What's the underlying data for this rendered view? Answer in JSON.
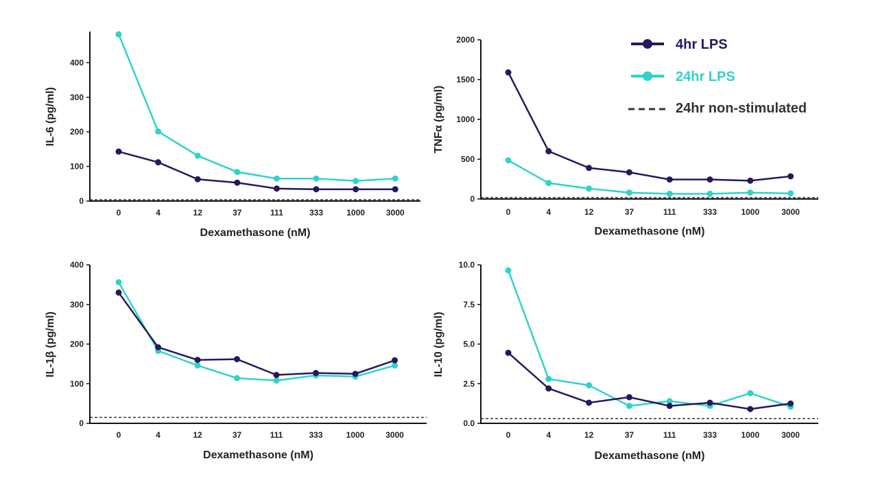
{
  "colors": {
    "lps4": "#23195e",
    "lps24": "#2fd3c9",
    "baseline": "#333333"
  },
  "legend": {
    "items": [
      {
        "label": "4hr LPS",
        "color": "#23195e",
        "style": "line-marker"
      },
      {
        "label": "24hr LPS",
        "color": "#2fd3c9",
        "style": "line-marker"
      },
      {
        "label": "24hr non-stimulated",
        "color": "#333333",
        "style": "dashed"
      }
    ]
  },
  "chart_data": [
    {
      "type": "line",
      "id": "il6",
      "ylabel": "IL-6 (pg/ml)",
      "xlabel": "Dexamethasone (nM)",
      "categories": [
        "0",
        "4",
        "12",
        "37",
        "111",
        "333",
        "1000",
        "3000"
      ],
      "ylim": [
        0,
        490
      ],
      "yticks": [
        0,
        100,
        200,
        300,
        400
      ],
      "ytick_labels": [
        "0",
        "100",
        "200",
        "300",
        "400"
      ],
      "baseline": 0,
      "series": [
        {
          "name": "4hr LPS",
          "values": [
            143,
            112,
            63,
            53,
            36,
            34,
            34,
            34
          ]
        },
        {
          "name": "24hr LPS",
          "values": [
            482,
            201,
            131,
            84,
            65,
            65,
            58,
            65
          ]
        }
      ]
    },
    {
      "type": "line",
      "id": "tnfa",
      "ylabel": "TNFα (pg/ml)",
      "xlabel": "Dexamethasone (nM)",
      "categories": [
        "0",
        "4",
        "12",
        "37",
        "111",
        "333",
        "1000",
        "3000"
      ],
      "ylim": [
        0,
        2000
      ],
      "yticks": [
        0,
        500,
        1000,
        1500,
        2000
      ],
      "ytick_labels": [
        "0",
        "500",
        "1000",
        "1500",
        "2000"
      ],
      "baseline": 0,
      "series": [
        {
          "name": "4hr LPS",
          "values": [
            1590,
            600,
            390,
            335,
            245,
            245,
            230,
            285
          ]
        },
        {
          "name": "24hr LPS",
          "values": [
            485,
            200,
            130,
            80,
            65,
            65,
            80,
            70
          ]
        }
      ]
    },
    {
      "type": "line",
      "id": "il1b",
      "ylabel": "IL-1β (pg/ml)",
      "xlabel": "Dexamethasone (nM)",
      "categories": [
        "0",
        "4",
        "12",
        "37",
        "111",
        "333",
        "1000",
        "3000"
      ],
      "ylim": [
        0,
        400
      ],
      "yticks": [
        0,
        100,
        200,
        300,
        400
      ],
      "ytick_labels": [
        "0",
        "100",
        "200",
        "300",
        "400"
      ],
      "baseline": 15,
      "series": [
        {
          "name": "4hr LPS",
          "values": [
            330,
            192,
            160,
            162,
            122,
            127,
            125,
            159
          ]
        },
        {
          "name": "24hr LPS",
          "values": [
            356,
            183,
            146,
            114,
            108,
            121,
            118,
            146
          ]
        }
      ]
    },
    {
      "type": "line",
      "id": "il10",
      "ylabel": "IL-10 (pg/ml)",
      "xlabel": "Dexamethasone (nM)",
      "categories": [
        "0",
        "4",
        "12",
        "37",
        "111",
        "333",
        "1000",
        "3000"
      ],
      "ylim": [
        0,
        10
      ],
      "yticks": [
        0,
        2.5,
        5,
        7.5,
        10
      ],
      "ytick_labels": [
        "0.0",
        "2.5",
        "5.0",
        "7.5",
        "10.0"
      ],
      "baseline": 0.3,
      "series": [
        {
          "name": "4hr LPS",
          "values": [
            4.45,
            2.2,
            1.3,
            1.65,
            1.1,
            1.3,
            0.9,
            1.25
          ]
        },
        {
          "name": "24hr LPS",
          "values": [
            9.65,
            2.8,
            2.4,
            1.1,
            1.4,
            1.1,
            1.9,
            1.05
          ]
        }
      ]
    }
  ]
}
